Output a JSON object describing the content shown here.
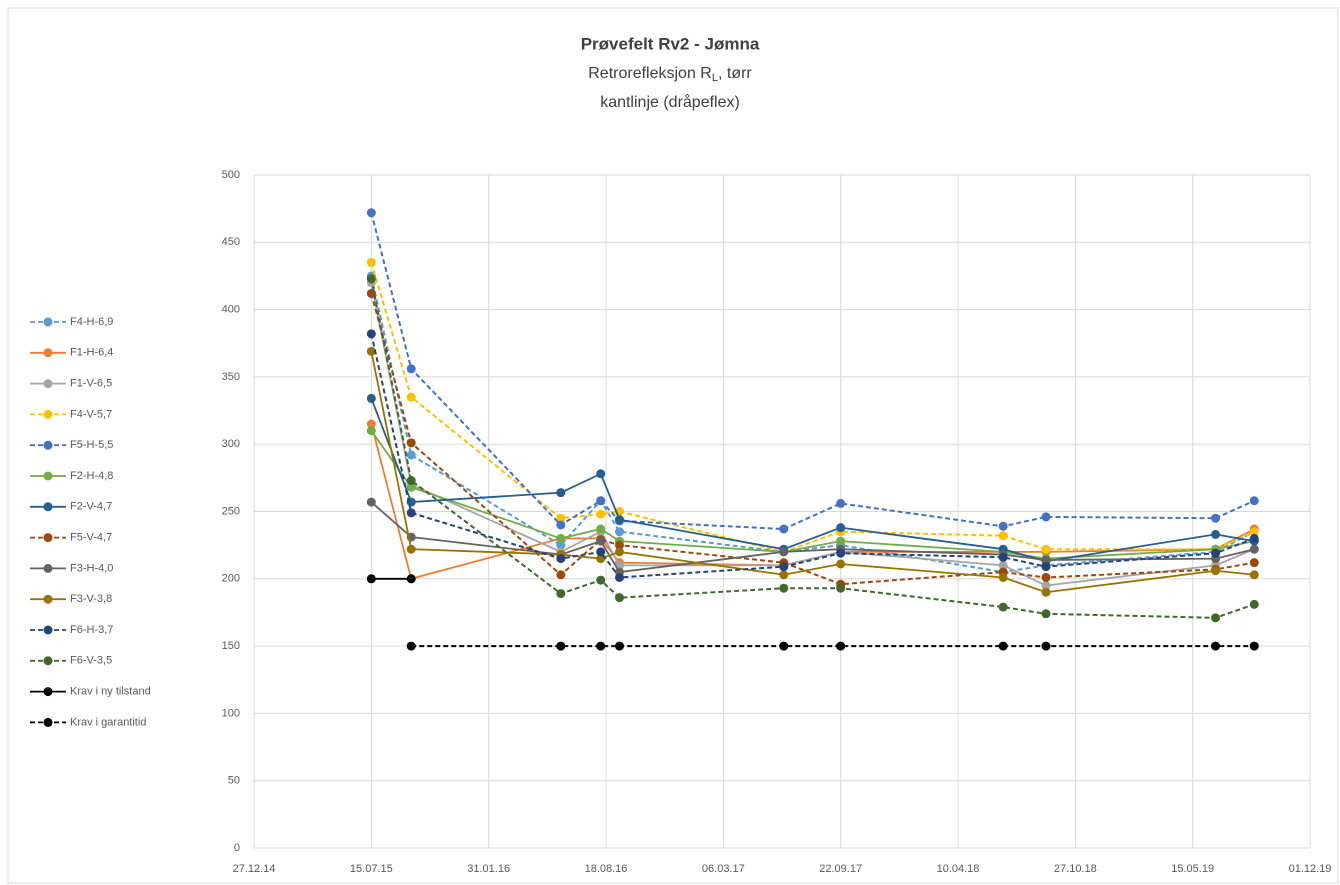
{
  "chart_data": {
    "type": "line",
    "title": "Prøvefelt Rv2 - Jømna",
    "subtitle": {
      "text": "Retrorefleksjon R",
      "subscript": "L",
      "suffix": ", tørr"
    },
    "subtitle2": "kantlinje (dråpeflex)",
    "x": [
      "2015-07-15",
      "2015-09-21",
      "2016-06-02",
      "2016-08-09",
      "2016-09-10",
      "2017-06-17",
      "2017-09-22",
      "2018-06-26",
      "2018-09-07",
      "2019-06-23",
      "2019-08-28"
    ],
    "xlim": [
      "2014-12-27",
      "2019-12-01"
    ],
    "xticks": [
      {
        "value": "2014-12-27",
        "label": "27.12.14"
      },
      {
        "value": "2015-07-15",
        "label": "15.07.15"
      },
      {
        "value": "2016-01-31",
        "label": "31.01.16"
      },
      {
        "value": "2016-08-18",
        "label": "18.08.16"
      },
      {
        "value": "2017-03-06",
        "label": "06.03.17"
      },
      {
        "value": "2017-09-22",
        "label": "22.09.17"
      },
      {
        "value": "2018-04-10",
        "label": "10.04.18"
      },
      {
        "value": "2018-10-27",
        "label": "27.10.18"
      },
      {
        "value": "2019-05-15",
        "label": "15.05.19"
      },
      {
        "value": "2019-12-01",
        "label": "01.12.19"
      }
    ],
    "ylim": [
      0,
      500
    ],
    "yticks": [
      0,
      50,
      100,
      150,
      200,
      250,
      300,
      350,
      400,
      450,
      500
    ],
    "grid": true,
    "legend": "left",
    "series": [
      {
        "name": "F4-H-6,9",
        "color": "#5b9bd5",
        "dash": true,
        "values": [
          425,
          292,
          225,
          258,
          235,
          220,
          225,
          205,
          210,
          220,
          235
        ]
      },
      {
        "name": "F1-H-6,4",
        "color": "#ed7d31",
        "dash": false,
        "values": [
          315,
          200,
          230,
          230,
          212,
          210,
          220,
          220,
          220,
          222,
          237
        ]
      },
      {
        "name": "F1-V-6,5",
        "color": "#a5a5a5",
        "dash": false,
        "values": [
          420,
          270,
          220,
          235,
          210,
          210,
          220,
          210,
          195,
          210,
          222
        ]
      },
      {
        "name": "F4-V-5,7",
        "color": "#ffc000",
        "dash": true,
        "values": [
          435,
          335,
          245,
          248,
          250,
          220,
          235,
          232,
          222,
          222,
          235
        ]
      },
      {
        "name": "F5-H-5,5",
        "color": "#4472c4",
        "dash": true,
        "values": [
          472,
          356,
          240,
          258,
          243,
          237,
          256,
          239,
          246,
          245,
          258
        ]
      },
      {
        "name": "F2-H-4,8",
        "color": "#70ad47",
        "dash": false,
        "values": [
          310,
          268,
          230,
          237,
          228,
          220,
          228,
          220,
          215,
          222,
          228
        ]
      },
      {
        "name": "F2-V-4,7",
        "color": "#255e91",
        "dash": false,
        "values": [
          334,
          257,
          264,
          278,
          244,
          222,
          238,
          222,
          213,
          233,
          228
        ]
      },
      {
        "name": "F5-V-4,7",
        "color": "#9e480e",
        "dash": true,
        "values": [
          412,
          301,
          203,
          229,
          225,
          212,
          196,
          205,
          201,
          207,
          212
        ]
      },
      {
        "name": "F3-H-4,0",
        "color": "#636363",
        "dash": false,
        "values": [
          257,
          231,
          218,
          228,
          205,
          220,
          222,
          218,
          214,
          215,
          222
        ]
      },
      {
        "name": "F3-V-3,8",
        "color": "#997300",
        "dash": false,
        "values": [
          369,
          222,
          218,
          215,
          220,
          203,
          211,
          201,
          190,
          206,
          203
        ]
      },
      {
        "name": "F6-H-3,7",
        "color": "#264478",
        "dash": true,
        "values": [
          382,
          249,
          215,
          220,
          201,
          209,
          219,
          216,
          209,
          219,
          230
        ]
      },
      {
        "name": "F6-V-3,5",
        "color": "#43682b",
        "dash": true,
        "values": [
          423,
          273,
          189,
          199,
          186,
          193,
          193,
          179,
          174,
          171,
          181
        ]
      },
      {
        "name": "Krav i ny tilstand",
        "color": "#000000",
        "dash": false,
        "values": [
          200,
          200,
          null,
          null,
          null,
          null,
          null,
          null,
          null,
          null,
          null
        ]
      },
      {
        "name": "Krav i garantitid",
        "color": "#000000",
        "dash": true,
        "values": [
          null,
          150,
          150,
          150,
          150,
          150,
          150,
          150,
          150,
          150,
          150
        ]
      }
    ]
  }
}
